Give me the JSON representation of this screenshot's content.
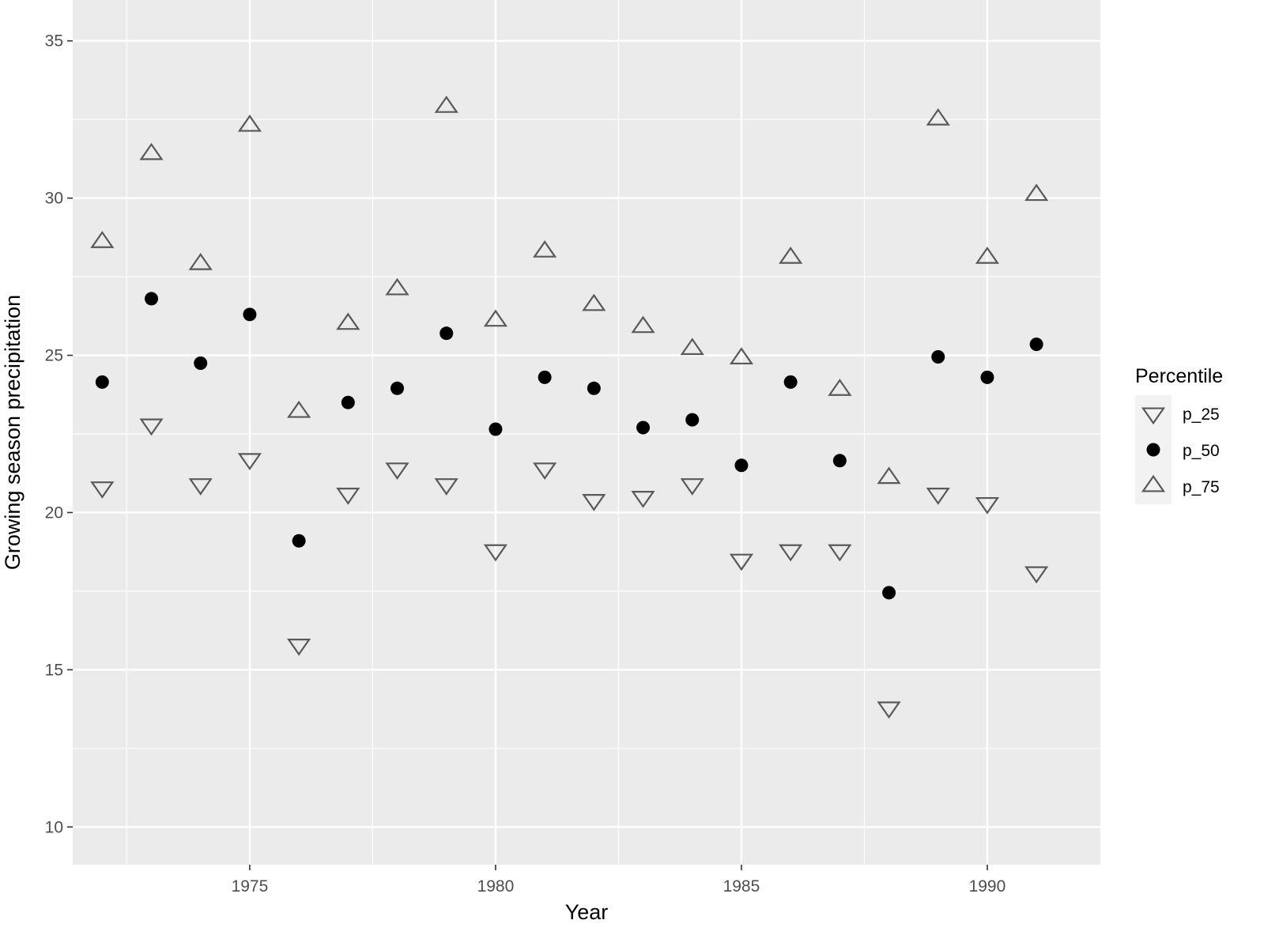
{
  "chart_data": {
    "type": "scatter",
    "title": "",
    "xlabel": "Year",
    "ylabel": "Growing season precipitation",
    "xlim": [
      1971.4,
      1992.3
    ],
    "ylim": [
      8.8,
      36.3
    ],
    "x_ticks": [
      1975,
      1980,
      1985,
      1990
    ],
    "x_tick_labels": [
      "1975",
      "1980",
      "1985",
      "1990"
    ],
    "y_ticks": [
      10,
      15,
      20,
      25,
      30,
      35
    ],
    "y_tick_labels": [
      "10",
      "15",
      "20",
      "25",
      "30",
      "35"
    ],
    "grid": true,
    "legend": {
      "title": "Percentile",
      "placement": "right",
      "entries": [
        "p_25",
        "p_50",
        "p_75"
      ]
    },
    "x": [
      1972,
      1973,
      1974,
      1975,
      1976,
      1977,
      1978,
      1979,
      1980,
      1981,
      1982,
      1983,
      1984,
      1985,
      1986,
      1987,
      1988,
      1989,
      1990,
      1991
    ],
    "series": [
      {
        "name": "p_25",
        "marker": "triangle-down",
        "color": "#595959",
        "values": [
          20.8,
          22.8,
          20.9,
          21.7,
          15.8,
          20.6,
          21.4,
          20.9,
          18.8,
          21.4,
          20.4,
          20.5,
          20.9,
          18.5,
          18.8,
          18.8,
          13.8,
          20.6,
          20.3,
          18.1
        ]
      },
      {
        "name": "p_50",
        "marker": "circle",
        "color": "#000000",
        "values": [
          24.15,
          26.8,
          24.75,
          26.3,
          19.1,
          23.5,
          23.95,
          25.7,
          22.65,
          24.3,
          23.95,
          22.7,
          22.95,
          21.5,
          24.15,
          21.65,
          17.45,
          24.95,
          24.3,
          25.35
        ]
      },
      {
        "name": "p_75",
        "marker": "triangle-up",
        "color": "#595959",
        "values": [
          28.6,
          31.4,
          27.9,
          32.3,
          23.2,
          26.0,
          27.1,
          32.9,
          26.1,
          28.3,
          26.6,
          25.9,
          25.2,
          24.9,
          28.1,
          23.9,
          21.1,
          32.5,
          28.1,
          30.1
        ]
      }
    ],
    "colors": {
      "panel_background": "#ebebeb",
      "grid_major": "#ffffff",
      "tick_text": "#4d4d4d",
      "legend_key_background": "#f2f2f2"
    }
  }
}
